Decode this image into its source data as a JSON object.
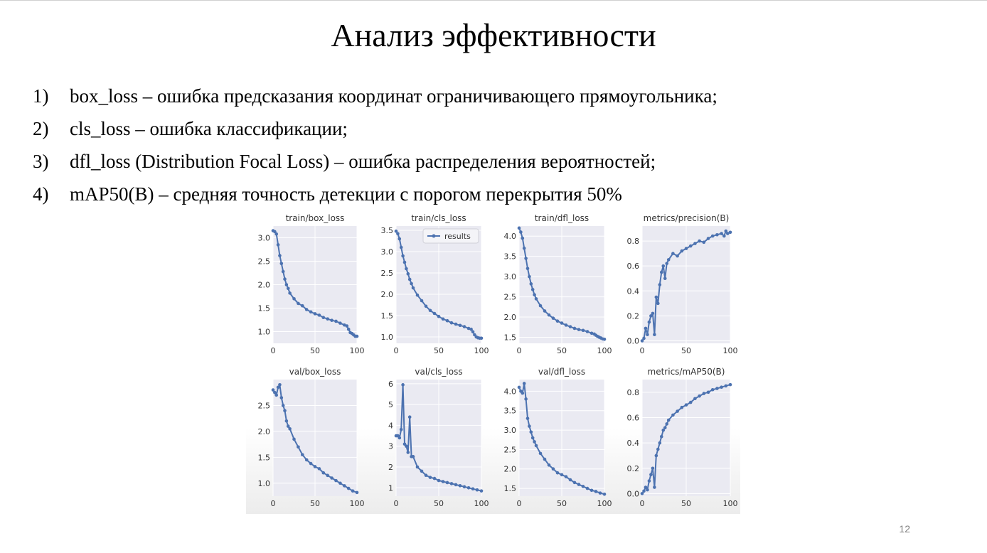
{
  "slide": {
    "title": "Анализ эффективности",
    "bullets": [
      {
        "num": "1)",
        "text": "box_loss – ошибка предсказания координат ограничивающего прямоугольника;"
      },
      {
        "num": "2)",
        "text": "cls_loss – ошибка классификации;"
      },
      {
        "num": "3)",
        "text": "dfl_loss (Distribution Focal Loss) – ошибка распределения вероятностей;"
      },
      {
        "num": "4)",
        "text": "mAP50(B) – средняя точность детекции с порогом перекрытия 50%"
      }
    ],
    "page_number": "12"
  },
  "colors": {
    "series": "#4c72b0",
    "plot_bg": "#eaeaf2",
    "grid": "#ffffff",
    "text": "#333333"
  },
  "chart_data": [
    {
      "type": "line",
      "title": "train/box_loss",
      "xlim": [
        0,
        100
      ],
      "ylim": [
        0.75,
        3.25
      ],
      "xticks": [
        0,
        50,
        100
      ],
      "yticks": [
        1.0,
        1.5,
        2.0,
        2.5,
        3.0
      ],
      "ytick_labels": [
        "1.0",
        "1.5",
        "2.0",
        "2.5",
        "3.0"
      ],
      "grid": true,
      "legend": null,
      "series": [
        {
          "name": "results",
          "x": [
            0,
            2,
            4,
            6,
            8,
            10,
            12,
            14,
            16,
            18,
            20,
            25,
            30,
            35,
            40,
            45,
            50,
            55,
            60,
            65,
            70,
            75,
            80,
            85,
            88,
            90,
            92,
            94,
            96,
            98,
            100
          ],
          "y": [
            3.15,
            3.13,
            3.08,
            2.85,
            2.62,
            2.45,
            2.28,
            2.12,
            2.0,
            1.92,
            1.82,
            1.7,
            1.6,
            1.55,
            1.47,
            1.42,
            1.38,
            1.35,
            1.3,
            1.27,
            1.24,
            1.22,
            1.18,
            1.14,
            1.12,
            1.05,
            0.98,
            0.96,
            0.93,
            0.9,
            0.9
          ]
        }
      ]
    },
    {
      "type": "line",
      "title": "train/cls_loss",
      "xlim": [
        0,
        100
      ],
      "ylim": [
        0.85,
        3.6
      ],
      "xticks": [
        0,
        50,
        100
      ],
      "yticks": [
        1.0,
        1.5,
        2.0,
        2.5,
        3.0,
        3.5
      ],
      "ytick_labels": [
        "1.0",
        "1.5",
        "2.0",
        "2.5",
        "3.0",
        "3.5"
      ],
      "grid": true,
      "legend": {
        "label": "results",
        "position": "top-right"
      },
      "series": [
        {
          "name": "results",
          "x": [
            0,
            2,
            4,
            6,
            8,
            10,
            12,
            14,
            16,
            18,
            20,
            25,
            30,
            35,
            40,
            45,
            50,
            55,
            60,
            65,
            70,
            75,
            80,
            85,
            88,
            90,
            92,
            94,
            96,
            98,
            100
          ],
          "y": [
            3.48,
            3.42,
            3.3,
            3.1,
            2.9,
            2.75,
            2.6,
            2.48,
            2.35,
            2.25,
            2.15,
            1.98,
            1.85,
            1.72,
            1.62,
            1.55,
            1.48,
            1.42,
            1.38,
            1.33,
            1.3,
            1.27,
            1.24,
            1.2,
            1.18,
            1.12,
            1.05,
            1.0,
            0.98,
            0.97,
            0.97
          ]
        }
      ]
    },
    {
      "type": "line",
      "title": "train/dfl_loss",
      "xlim": [
        0,
        100
      ],
      "ylim": [
        1.35,
        4.25
      ],
      "xticks": [
        0,
        50,
        100
      ],
      "yticks": [
        1.5,
        2.0,
        2.5,
        3.0,
        3.5,
        4.0
      ],
      "ytick_labels": [
        "1.5",
        "2.0",
        "2.5",
        "3.0",
        "3.5",
        "4.0"
      ],
      "grid": true,
      "legend": null,
      "series": [
        {
          "name": "results",
          "x": [
            0,
            2,
            4,
            6,
            8,
            10,
            12,
            14,
            16,
            18,
            20,
            25,
            30,
            35,
            40,
            45,
            50,
            55,
            60,
            65,
            70,
            75,
            80,
            85,
            88,
            90,
            92,
            94,
            96,
            98,
            100
          ],
          "y": [
            4.2,
            4.1,
            3.95,
            3.7,
            3.45,
            3.2,
            3.0,
            2.82,
            2.68,
            2.55,
            2.45,
            2.28,
            2.15,
            2.05,
            1.97,
            1.9,
            1.85,
            1.8,
            1.76,
            1.72,
            1.69,
            1.67,
            1.64,
            1.6,
            1.58,
            1.55,
            1.52,
            1.5,
            1.48,
            1.46,
            1.45
          ]
        }
      ]
    },
    {
      "type": "line",
      "title": "metrics/precision(B)",
      "xlim": [
        0,
        100
      ],
      "ylim": [
        -0.02,
        0.92
      ],
      "xticks": [
        0,
        50,
        100
      ],
      "yticks": [
        0.0,
        0.2,
        0.4,
        0.6,
        0.8
      ],
      "ytick_labels": [
        "0.0",
        "0.2",
        "0.4",
        "0.6",
        "0.8"
      ],
      "grid": true,
      "legend": null,
      "series": [
        {
          "name": "results",
          "x": [
            0,
            2,
            4,
            6,
            8,
            10,
            12,
            14,
            16,
            18,
            20,
            22,
            24,
            26,
            28,
            30,
            35,
            40,
            45,
            50,
            55,
            60,
            65,
            70,
            75,
            80,
            85,
            90,
            93,
            95,
            97,
            100
          ],
          "y": [
            0.0,
            0.02,
            0.1,
            0.05,
            0.15,
            0.2,
            0.22,
            0.05,
            0.35,
            0.3,
            0.45,
            0.55,
            0.6,
            0.5,
            0.62,
            0.65,
            0.7,
            0.68,
            0.72,
            0.74,
            0.76,
            0.78,
            0.8,
            0.79,
            0.82,
            0.84,
            0.85,
            0.86,
            0.84,
            0.88,
            0.86,
            0.87
          ]
        }
      ]
    },
    {
      "type": "line",
      "title": "val/box_loss",
      "xlim": [
        0,
        100
      ],
      "ylim": [
        0.75,
        3.0
      ],
      "xticks": [
        0,
        50,
        100
      ],
      "yticks": [
        1.0,
        1.5,
        2.0,
        2.5
      ],
      "ytick_labels": [
        "1.0",
        "1.5",
        "2.0",
        "2.5"
      ],
      "grid": true,
      "legend": null,
      "series": [
        {
          "name": "results",
          "x": [
            0,
            2,
            4,
            6,
            8,
            10,
            12,
            14,
            16,
            18,
            20,
            25,
            30,
            35,
            40,
            45,
            50,
            55,
            60,
            65,
            70,
            75,
            80,
            85,
            90,
            95,
            100
          ],
          "y": [
            2.8,
            2.75,
            2.7,
            2.85,
            2.9,
            2.65,
            2.5,
            2.4,
            2.2,
            2.1,
            2.05,
            1.85,
            1.7,
            1.55,
            1.45,
            1.38,
            1.32,
            1.28,
            1.2,
            1.15,
            1.1,
            1.05,
            1.0,
            0.95,
            0.9,
            0.85,
            0.82
          ]
        }
      ]
    },
    {
      "type": "line",
      "title": "val/cls_loss",
      "xlim": [
        0,
        100
      ],
      "ylim": [
        0.6,
        6.2
      ],
      "xticks": [
        0,
        50,
        100
      ],
      "yticks": [
        1,
        2,
        3,
        4,
        5,
        6
      ],
      "ytick_labels": [
        "1",
        "2",
        "3",
        "4",
        "5",
        "6"
      ],
      "grid": true,
      "legend": null,
      "series": [
        {
          "name": "results",
          "x": [
            0,
            2,
            4,
            6,
            8,
            10,
            12,
            14,
            16,
            18,
            20,
            25,
            30,
            35,
            40,
            45,
            50,
            55,
            60,
            65,
            70,
            75,
            80,
            85,
            90,
            95,
            100
          ],
          "y": [
            3.5,
            3.5,
            3.4,
            3.8,
            5.95,
            3.1,
            3.0,
            2.7,
            4.4,
            2.5,
            2.5,
            2.0,
            1.8,
            1.6,
            1.5,
            1.45,
            1.35,
            1.3,
            1.25,
            1.2,
            1.15,
            1.1,
            1.05,
            1.0,
            0.95,
            0.9,
            0.85
          ]
        }
      ]
    },
    {
      "type": "line",
      "title": "val/dfl_loss",
      "xlim": [
        0,
        100
      ],
      "ylim": [
        1.3,
        4.3
      ],
      "xticks": [
        0,
        50,
        100
      ],
      "yticks": [
        1.5,
        2.0,
        2.5,
        3.0,
        3.5,
        4.0
      ],
      "ytick_labels": [
        "1.5",
        "2.0",
        "2.5",
        "3.0",
        "3.5",
        "4.0"
      ],
      "grid": true,
      "legend": null,
      "series": [
        {
          "name": "results",
          "x": [
            0,
            2,
            4,
            6,
            8,
            10,
            12,
            14,
            16,
            18,
            20,
            25,
            30,
            35,
            40,
            45,
            50,
            55,
            60,
            65,
            70,
            75,
            80,
            85,
            90,
            95,
            100
          ],
          "y": [
            4.1,
            4.0,
            3.95,
            4.2,
            3.8,
            3.3,
            3.1,
            2.95,
            2.8,
            2.7,
            2.6,
            2.4,
            2.25,
            2.1,
            2.0,
            1.9,
            1.85,
            1.8,
            1.72,
            1.65,
            1.6,
            1.55,
            1.5,
            1.45,
            1.42,
            1.38,
            1.35
          ]
        }
      ]
    },
    {
      "type": "line",
      "title": "metrics/mAP50(B)",
      "xlim": [
        0,
        100
      ],
      "ylim": [
        -0.02,
        0.9
      ],
      "xticks": [
        0,
        50,
        100
      ],
      "yticks": [
        0.0,
        0.2,
        0.4,
        0.6,
        0.8
      ],
      "ytick_labels": [
        "0.0",
        "0.2",
        "0.4",
        "0.6",
        "0.8"
      ],
      "grid": true,
      "legend": null,
      "series": [
        {
          "name": "results",
          "x": [
            0,
            2,
            4,
            6,
            8,
            10,
            12,
            14,
            16,
            18,
            20,
            22,
            24,
            26,
            28,
            30,
            35,
            40,
            45,
            50,
            55,
            60,
            65,
            70,
            75,
            80,
            85,
            90,
            95,
            100
          ],
          "y": [
            0.0,
            0.02,
            0.05,
            0.03,
            0.1,
            0.15,
            0.2,
            0.05,
            0.3,
            0.35,
            0.4,
            0.45,
            0.5,
            0.52,
            0.55,
            0.58,
            0.62,
            0.65,
            0.68,
            0.7,
            0.72,
            0.75,
            0.77,
            0.79,
            0.8,
            0.82,
            0.83,
            0.84,
            0.85,
            0.86
          ]
        }
      ]
    }
  ]
}
